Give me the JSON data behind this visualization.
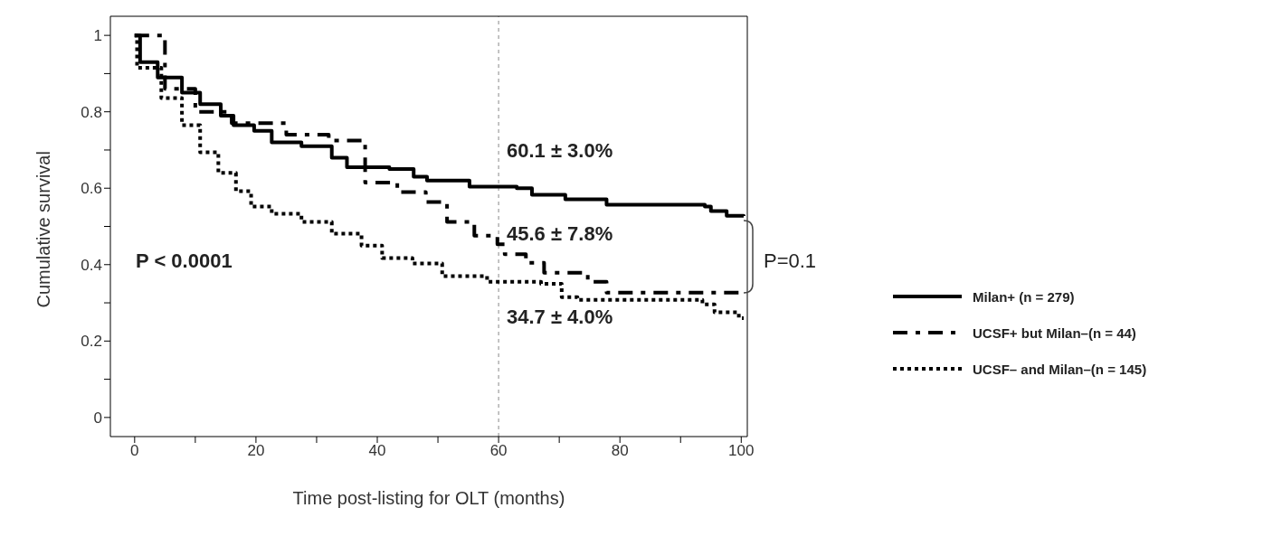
{
  "chart_data": {
    "type": "step",
    "xlabel": "Time post-listing for OLT (months)",
    "ylabel": "Cumulative survival",
    "xlim": [
      -4,
      101
    ],
    "ylim": [
      -0.05,
      1.05
    ],
    "xticks": [
      0,
      {
        "value": 10,
        "label": null
      },
      20,
      {
        "value": 30,
        "label": null
      },
      40,
      {
        "value": 50,
        "label": null
      },
      60,
      {
        "value": 70,
        "label": null
      },
      80,
      {
        "value": 90,
        "label": null
      },
      100
    ],
    "yticks": [
      0,
      {
        "value": 0.1,
        "label": null
      },
      0.2,
      {
        "value": 0.3,
        "label": null
      },
      0.4,
      {
        "value": 0.5,
        "label": null
      },
      0.6,
      {
        "value": 0.7,
        "label": null
      },
      0.8,
      {
        "value": 0.9,
        "label": null
      },
      1
    ],
    "grid": false,
    "legend": "right",
    "ref_lines": [
      {
        "axis": "x",
        "value": 60,
        "line_style": "dotted",
        "color": "#888888"
      }
    ],
    "annotations": [
      "60.1 ± 3.0%",
      "45.6 ± 7.8%",
      "34.7 ± 4.0%",
      "P < 0.0001",
      "P=0.1"
    ],
    "series": [
      {
        "name": "Milan+ (n = 279)",
        "color": "#000000",
        "line_style": "solid",
        "x": [
          0,
          0.9,
          3.8,
          7.8,
          10.8,
          14.2,
          16.3,
          19.7,
          22.6,
          27.5,
          32.5,
          35,
          42,
          46,
          48.2,
          55.2,
          63,
          65.5,
          71,
          77.8,
          94,
          95,
          97.6,
          100.4
        ],
        "values": [
          1,
          0.93,
          0.89,
          0.85,
          0.82,
          0.79,
          0.765,
          0.75,
          0.72,
          0.71,
          0.68,
          0.655,
          0.65,
          0.63,
          0.62,
          0.604,
          0.6,
          0.583,
          0.571,
          0.557,
          0.552,
          0.54,
          0.528,
          0.527
        ]
      },
      {
        "name": "UCSF+ but Milan–(n = 44)",
        "color": "#000000",
        "line_style": "dashed",
        "x": [
          0,
          5,
          10,
          16,
          25,
          32,
          38,
          43.3,
          48,
          51.5,
          56,
          59.8,
          61,
          64.5,
          67.5,
          74.7,
          77.8,
          100.4
        ],
        "values": [
          1,
          0.86,
          0.8,
          0.77,
          0.74,
          0.725,
          0.615,
          0.59,
          0.564,
          0.512,
          0.476,
          0.453,
          0.427,
          0.405,
          0.379,
          0.355,
          0.327,
          0.327
        ]
      },
      {
        "name": "UCSF– and Milan–(n = 145)",
        "color": "#000000",
        "line_style": "dotted",
        "x": [
          0,
          0.4,
          4.4,
          7.8,
          10.8,
          13.8,
          16.7,
          19.2,
          22.6,
          27.5,
          32.5,
          37.4,
          40.8,
          45.8,
          50.7,
          58.1,
          67,
          70.4,
          73,
          93.6,
          95.6,
          99.6,
          100.4
        ],
        "values": [
          1,
          0.915,
          0.836,
          0.765,
          0.694,
          0.64,
          0.592,
          0.552,
          0.533,
          0.512,
          0.481,
          0.45,
          0.417,
          0.403,
          0.37,
          0.355,
          0.35,
          0.315,
          0.308,
          0.296,
          0.275,
          0.26,
          0.26
        ]
      }
    ]
  }
}
